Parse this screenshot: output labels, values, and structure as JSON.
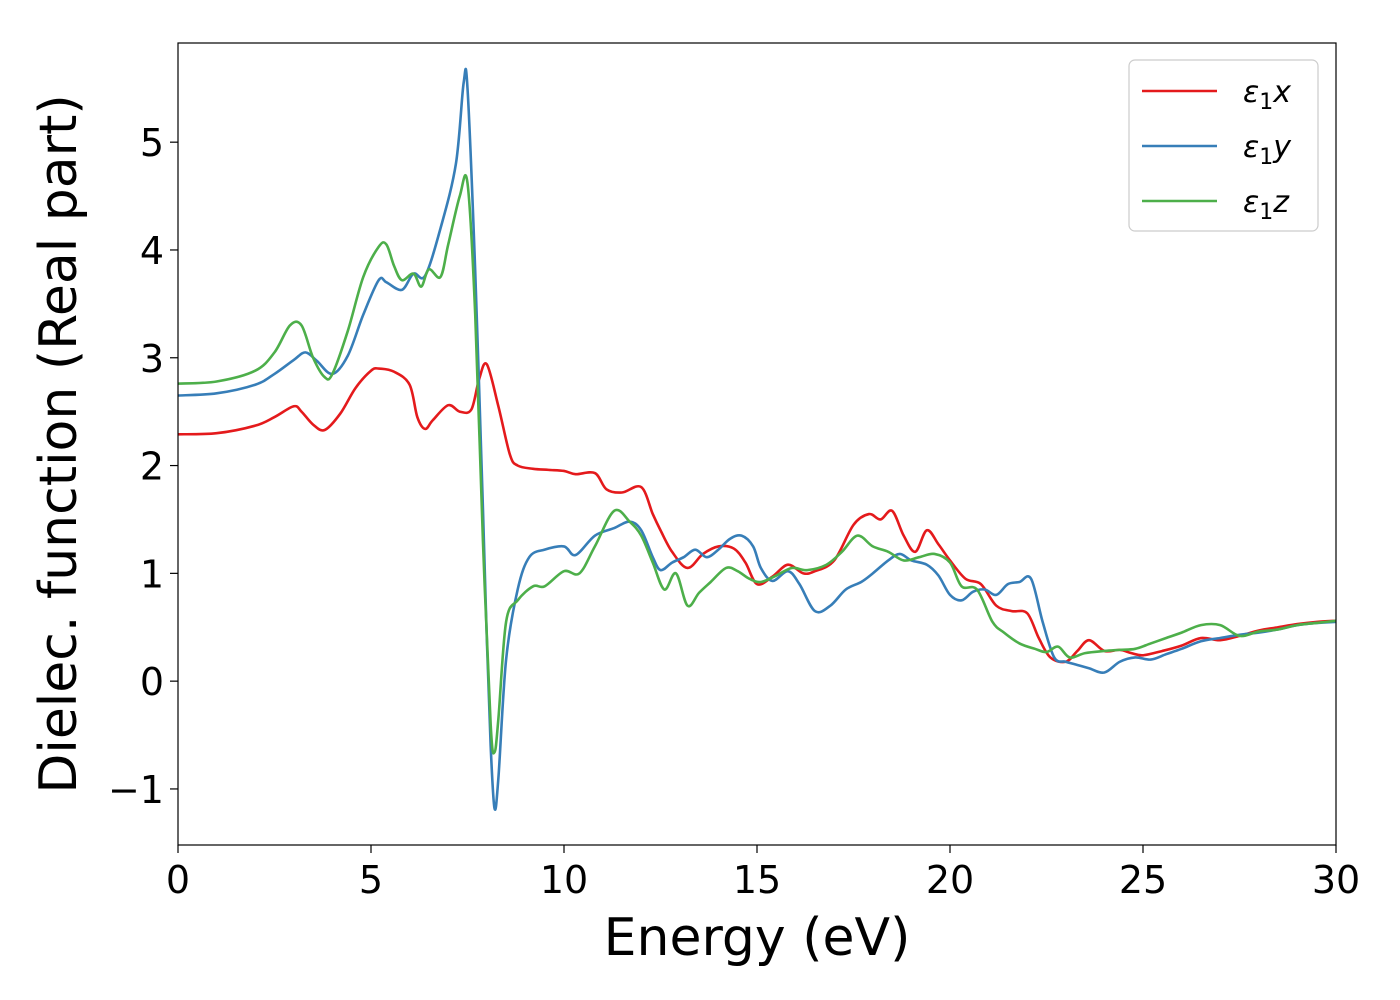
{
  "chart_data": {
    "type": "line",
    "title": "",
    "xlabel": "Energy (eV)",
    "ylabel": "Dielec. function (Real part)",
    "xlim": [
      0,
      30
    ],
    "ylim": [
      -1.52,
      5.92
    ],
    "xticks": [
      0,
      5,
      10,
      15,
      20,
      25,
      30
    ],
    "yticks": [
      -1,
      0,
      1,
      2,
      3,
      4,
      5
    ],
    "xtick_labels": [
      "0",
      "5",
      "10",
      "15",
      "20",
      "25",
      "30"
    ],
    "ytick_labels": [
      "−1",
      "0",
      "1",
      "2",
      "3",
      "4",
      "5"
    ],
    "grid": false,
    "legend_position": "top-right",
    "series": [
      {
        "name": "ε₁x",
        "legend_main": "ε",
        "legend_sub": "1",
        "legend_tail": "x",
        "color": "#e41a1c",
        "x": [
          0,
          1,
          2,
          2.5,
          3.0,
          3.2,
          3.5,
          3.8,
          4.2,
          4.6,
          5.0,
          5.2,
          5.6,
          6.0,
          6.2,
          6.4,
          6.6,
          7.0,
          7.3,
          7.6,
          7.8,
          8.0,
          8.3,
          8.6,
          8.8,
          9.2,
          9.6,
          10.0,
          10.3,
          10.8,
          11.1,
          11.5,
          12.0,
          12.3,
          12.5,
          12.8,
          13.2,
          13.6,
          14.0,
          14.4,
          14.7,
          15.0,
          15.4,
          15.8,
          16.2,
          16.5,
          17.0,
          17.5,
          17.9,
          18.2,
          18.5,
          18.8,
          19.1,
          19.4,
          19.7,
          20.0,
          20.4,
          20.8,
          21.2,
          21.6,
          22.0,
          22.3,
          22.6,
          23.0,
          23.3,
          23.6,
          24.0,
          24.4,
          24.7,
          25.0,
          25.5,
          26.0,
          26.5,
          27.0,
          27.5,
          28.0,
          28.5,
          29.0,
          29.5,
          30.0
        ],
        "y": [
          2.29,
          2.3,
          2.37,
          2.45,
          2.55,
          2.5,
          2.38,
          2.33,
          2.48,
          2.72,
          2.88,
          2.9,
          2.87,
          2.75,
          2.45,
          2.34,
          2.42,
          2.56,
          2.5,
          2.52,
          2.8,
          2.94,
          2.55,
          2.1,
          2.0,
          1.97,
          1.96,
          1.95,
          1.92,
          1.93,
          1.78,
          1.75,
          1.8,
          1.55,
          1.4,
          1.2,
          1.05,
          1.18,
          1.25,
          1.23,
          1.1,
          0.9,
          0.97,
          1.08,
          1.0,
          1.02,
          1.12,
          1.45,
          1.55,
          1.5,
          1.58,
          1.35,
          1.2,
          1.4,
          1.27,
          1.12,
          0.95,
          0.9,
          0.7,
          0.65,
          0.63,
          0.4,
          0.22,
          0.18,
          0.28,
          0.38,
          0.28,
          0.29,
          0.26,
          0.24,
          0.28,
          0.33,
          0.4,
          0.38,
          0.42,
          0.47,
          0.5,
          0.53,
          0.55,
          0.56
        ]
      },
      {
        "name": "ε₁y",
        "legend_main": "ε",
        "legend_sub": "1",
        "legend_tail": "y",
        "color": "#377eb8",
        "x": [
          0,
          1,
          2,
          2.5,
          3.0,
          3.3,
          3.6,
          4.0,
          4.4,
          4.8,
          5.2,
          5.4,
          5.8,
          6.1,
          6.4,
          6.8,
          7.2,
          7.4,
          7.5,
          7.7,
          7.9,
          8.0,
          8.1,
          8.2,
          8.3,
          8.5,
          8.8,
          9.1,
          9.5,
          10.0,
          10.3,
          10.8,
          11.3,
          11.7,
          12.0,
          12.3,
          12.5,
          12.8,
          13.1,
          13.4,
          13.7,
          14.0,
          14.3,
          14.6,
          14.9,
          15.1,
          15.4,
          15.8,
          16.1,
          16.5,
          16.9,
          17.3,
          17.7,
          18.0,
          18.4,
          18.7,
          19.0,
          19.4,
          19.7,
          20.0,
          20.3,
          20.6,
          20.9,
          21.2,
          21.5,
          21.8,
          22.1,
          22.4,
          22.7,
          23.0,
          23.3,
          23.6,
          24.0,
          24.4,
          24.8,
          25.2,
          25.6,
          26.0,
          26.5,
          27.0,
          27.5,
          28.0,
          28.5,
          29.0,
          29.5,
          30.0
        ],
        "y": [
          2.65,
          2.67,
          2.75,
          2.85,
          2.98,
          3.05,
          2.97,
          2.85,
          3.02,
          3.4,
          3.72,
          3.7,
          3.63,
          3.78,
          3.76,
          4.2,
          4.8,
          5.55,
          5.5,
          3.8,
          1.6,
          0.4,
          -0.6,
          -1.18,
          -0.9,
          0.2,
          0.85,
          1.15,
          1.22,
          1.25,
          1.17,
          1.35,
          1.42,
          1.48,
          1.4,
          1.15,
          1.03,
          1.1,
          1.15,
          1.22,
          1.15,
          1.22,
          1.32,
          1.35,
          1.25,
          1.05,
          0.93,
          1.02,
          0.9,
          0.65,
          0.7,
          0.85,
          0.92,
          1.0,
          1.12,
          1.18,
          1.12,
          1.08,
          0.98,
          0.8,
          0.75,
          0.83,
          0.85,
          0.8,
          0.9,
          0.92,
          0.95,
          0.55,
          0.22,
          0.18,
          0.15,
          0.12,
          0.08,
          0.18,
          0.22,
          0.2,
          0.25,
          0.3,
          0.37,
          0.4,
          0.43,
          0.45,
          0.48,
          0.52,
          0.54,
          0.55
        ]
      },
      {
        "name": "ε₁z",
        "legend_main": "ε",
        "legend_sub": "1",
        "legend_tail": "z",
        "color": "#4daf4a",
        "x": [
          0,
          1,
          2,
          2.5,
          2.9,
          3.2,
          3.5,
          3.8,
          4.0,
          4.4,
          4.8,
          5.2,
          5.4,
          5.6,
          5.8,
          6.1,
          6.3,
          6.5,
          6.8,
          7.0,
          7.3,
          7.5,
          7.7,
          7.9,
          8.1,
          8.2,
          8.3,
          8.5,
          8.8,
          9.2,
          9.5,
          10.0,
          10.4,
          10.8,
          11.3,
          11.7,
          12.0,
          12.3,
          12.6,
          12.9,
          13.2,
          13.5,
          13.8,
          14.2,
          14.5,
          14.8,
          15.1,
          15.5,
          15.9,
          16.3,
          16.8,
          17.2,
          17.6,
          18.0,
          18.4,
          18.8,
          19.2,
          19.6,
          20.0,
          20.3,
          20.7,
          21.1,
          21.4,
          21.8,
          22.2,
          22.5,
          22.8,
          23.1,
          23.5,
          24.0,
          24.4,
          24.8,
          25.2,
          25.6,
          26.0,
          26.5,
          27.0,
          27.5,
          28.0,
          28.5,
          29.0,
          29.5,
          30.0
        ],
        "y": [
          2.76,
          2.78,
          2.88,
          3.05,
          3.3,
          3.3,
          3.0,
          2.82,
          2.85,
          3.25,
          3.75,
          4.03,
          4.05,
          3.85,
          3.72,
          3.78,
          3.66,
          3.82,
          3.75,
          4.05,
          4.5,
          4.62,
          3.4,
          1.3,
          -0.4,
          -0.66,
          -0.35,
          0.55,
          0.75,
          0.88,
          0.88,
          1.02,
          1.0,
          1.25,
          1.58,
          1.48,
          1.35,
          1.1,
          0.85,
          1.0,
          0.7,
          0.82,
          0.92,
          1.05,
          1.02,
          0.95,
          0.92,
          0.98,
          1.05,
          1.03,
          1.08,
          1.2,
          1.35,
          1.25,
          1.2,
          1.12,
          1.15,
          1.18,
          1.1,
          0.88,
          0.85,
          0.55,
          0.45,
          0.35,
          0.3,
          0.27,
          0.32,
          0.22,
          0.26,
          0.28,
          0.29,
          0.3,
          0.35,
          0.4,
          0.45,
          0.52,
          0.52,
          0.42,
          0.46,
          0.48,
          0.52,
          0.54,
          0.56
        ]
      }
    ]
  }
}
